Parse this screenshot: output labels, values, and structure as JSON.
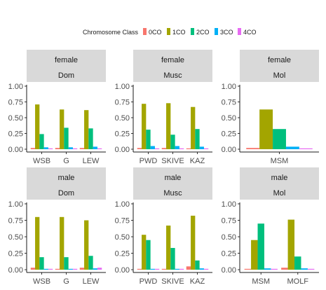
{
  "legend": {
    "title": "Chromosome Class",
    "position": "top"
  },
  "colors": {
    "0CO": "#F8766D",
    "1CO": "#A3A500",
    "2CO": "#00BF7D",
    "3CO": "#00B0F6",
    "4CO": "#E76BF3"
  },
  "chart_data": {
    "type": "bar",
    "facet_layout": "2 rows x 3 columns",
    "series_names": [
      "0CO",
      "1CO",
      "2CO",
      "3CO",
      "4CO"
    ],
    "ylim": [
      0,
      1
    ],
    "yticks": [
      "0.00",
      "0.25",
      "0.50",
      "0.75",
      "1.00"
    ],
    "grid": false,
    "panels": [
      {
        "strip": [
          "female",
          "Dom"
        ],
        "categories": [
          "WSB",
          "G",
          "LEW"
        ],
        "values": [
          [
            0.02,
            0.71,
            0.24,
            0.03,
            0.01
          ],
          [
            0.02,
            0.63,
            0.34,
            0.03,
            0.01
          ],
          [
            0.02,
            0.62,
            0.33,
            0.04,
            0.01
          ]
        ]
      },
      {
        "strip": [
          "female",
          "Musc"
        ],
        "categories": [
          "PWD",
          "SKIVE",
          "KAZ"
        ],
        "values": [
          [
            0.02,
            0.72,
            0.31,
            0.05,
            0.0
          ],
          [
            0.02,
            0.73,
            0.23,
            0.05,
            0.0
          ],
          [
            0.0,
            0.67,
            0.32,
            0.04,
            0.0
          ]
        ]
      },
      {
        "strip": [
          "female",
          "Mol"
        ],
        "categories": [
          "MSM"
        ],
        "values": [
          [
            0.02,
            0.63,
            0.32,
            0.04,
            0.01
          ]
        ]
      },
      {
        "strip": [
          "male",
          "Dom"
        ],
        "categories": [
          "WSB",
          "G",
          "LEW"
        ],
        "values": [
          [
            0.03,
            0.8,
            0.19,
            0.01,
            0.01
          ],
          [
            0.01,
            0.8,
            0.19,
            0.01,
            0.01
          ],
          [
            0.03,
            0.75,
            0.21,
            0.02,
            0.03
          ]
        ]
      },
      {
        "strip": [
          "male",
          "Musc"
        ],
        "categories": [
          "PWD",
          "SKIVE",
          "KAZ"
        ],
        "values": [
          [
            0.0,
            0.53,
            0.45,
            0.01,
            0.0
          ],
          [
            0.01,
            0.67,
            0.33,
            0.01,
            0.0
          ],
          [
            0.05,
            0.82,
            0.14,
            0.02,
            0.0
          ]
        ]
      },
      {
        "strip": [
          "male",
          "Mol"
        ],
        "categories": [
          "MSM",
          "MOLF"
        ],
        "values": [
          [
            0.0,
            0.45,
            0.7,
            0.02,
            0.0
          ],
          [
            0.03,
            0.76,
            0.2,
            0.02,
            0.0
          ]
        ]
      }
    ]
  }
}
